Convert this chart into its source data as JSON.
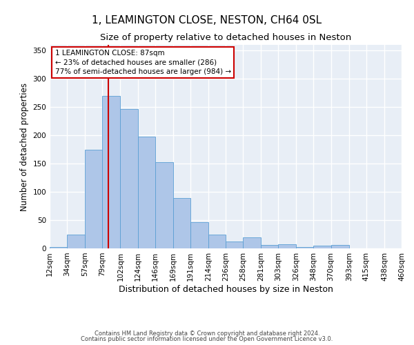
{
  "title1": "1, LEAMINGTON CLOSE, NESTON, CH64 0SL",
  "title2": "Size of property relative to detached houses in Neston",
  "xlabel": "Distribution of detached houses by size in Neston",
  "ylabel": "Number of detached properties",
  "footer1": "Contains HM Land Registry data © Crown copyright and database right 2024.",
  "footer2": "Contains public sector information licensed under the Open Government Licence v3.0.",
  "annotation_line1": "1 LEAMINGTON CLOSE: 87sqm",
  "annotation_line2": "← 23% of detached houses are smaller (286)",
  "annotation_line3": "77% of semi-detached houses are larger (984) →",
  "property_size": 87,
  "bin_edges": [
    12,
    34,
    57,
    79,
    102,
    124,
    146,
    169,
    191,
    214,
    236,
    258,
    281,
    303,
    326,
    348,
    370,
    393,
    415,
    438,
    460
  ],
  "bar_heights": [
    2,
    24,
    175,
    270,
    247,
    198,
    153,
    89,
    46,
    25,
    12,
    19,
    6,
    7,
    3,
    5,
    6,
    0,
    0,
    0
  ],
  "bar_color": "#aec6e8",
  "bar_edge_color": "#5a9fd4",
  "vline_color": "#cc0000",
  "vline_x": 87,
  "annotation_box_edge": "#cc0000",
  "ylim": [
    0,
    360
  ],
  "yticks": [
    0,
    50,
    100,
    150,
    200,
    250,
    300,
    350
  ],
  "background_color": "#e8eef6",
  "grid_color": "#ffffff",
  "title1_fontsize": 11,
  "title2_fontsize": 9.5,
  "xlabel_fontsize": 9,
  "ylabel_fontsize": 8.5,
  "tick_fontsize": 7.5,
  "annotation_fontsize": 7.5,
  "footer_fontsize": 6
}
